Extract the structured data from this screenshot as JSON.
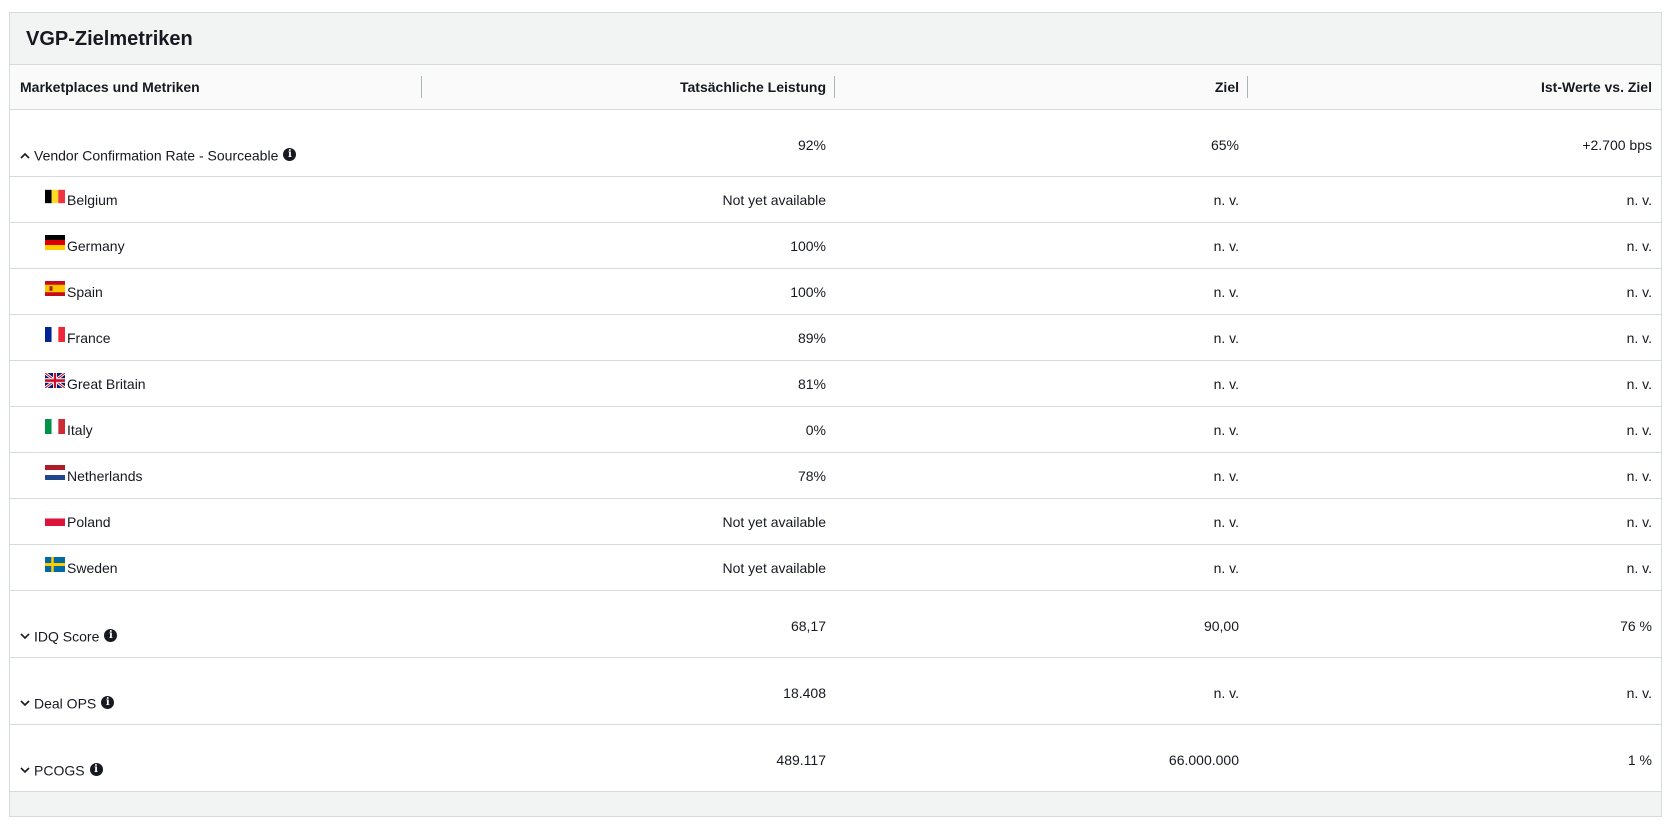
{
  "panel": {
    "title": "VGP-Zielmetriken"
  },
  "columns": {
    "metric": "Marketplaces und Metriken",
    "actual": "Tatsächliche Leistung",
    "target": "Ziel",
    "delta": "Ist-Werte vs. Ziel"
  },
  "icons": {
    "expanded": "chevron-up-icon",
    "collapsed": "chevron-down-icon",
    "info": "info-icon"
  },
  "vcr": {
    "label": "Vendor Confirmation Rate - Sourceable",
    "actual": "92%",
    "target": "65%",
    "delta": "+2.700 bps",
    "expanded": true,
    "countries": [
      {
        "name": "Belgium",
        "flag": "flag-be",
        "actual": "Not yet available",
        "target": "n. v.",
        "delta": "n. v."
      },
      {
        "name": "Germany",
        "flag": "flag-de",
        "actual": "100%",
        "target": "n. v.",
        "delta": "n. v."
      },
      {
        "name": "Spain",
        "flag": "flag-es",
        "actual": "100%",
        "target": "n. v.",
        "delta": "n. v."
      },
      {
        "name": "France",
        "flag": "flag-fr",
        "actual": "89%",
        "target": "n. v.",
        "delta": "n. v."
      },
      {
        "name": "Great Britain",
        "flag": "flag-gb",
        "actual": "81%",
        "target": "n. v.",
        "delta": "n. v."
      },
      {
        "name": "Italy",
        "flag": "flag-it",
        "actual": "0%",
        "target": "n. v.",
        "delta": "n. v."
      },
      {
        "name": "Netherlands",
        "flag": "flag-nl",
        "actual": "78%",
        "target": "n. v.",
        "delta": "n. v."
      },
      {
        "name": "Poland",
        "flag": "flag-pl",
        "actual": "Not yet available",
        "target": "n. v.",
        "delta": "n. v."
      },
      {
        "name": "Sweden",
        "flag": "flag-se",
        "actual": "Not yet available",
        "target": "n. v.",
        "delta": "n. v."
      }
    ]
  },
  "idq": {
    "label": "IDQ Score",
    "actual": "68,17",
    "target": "90,00",
    "delta": "76 %",
    "expanded": false
  },
  "deal_ops": {
    "label": "Deal OPS",
    "actual": "18.408",
    "target": "n. v.",
    "delta": "n. v.",
    "expanded": false
  },
  "pcogs": {
    "label": "PCOGS",
    "actual": "489.117",
    "target": "66.000.000",
    "delta": "1 %",
    "expanded": false
  }
}
